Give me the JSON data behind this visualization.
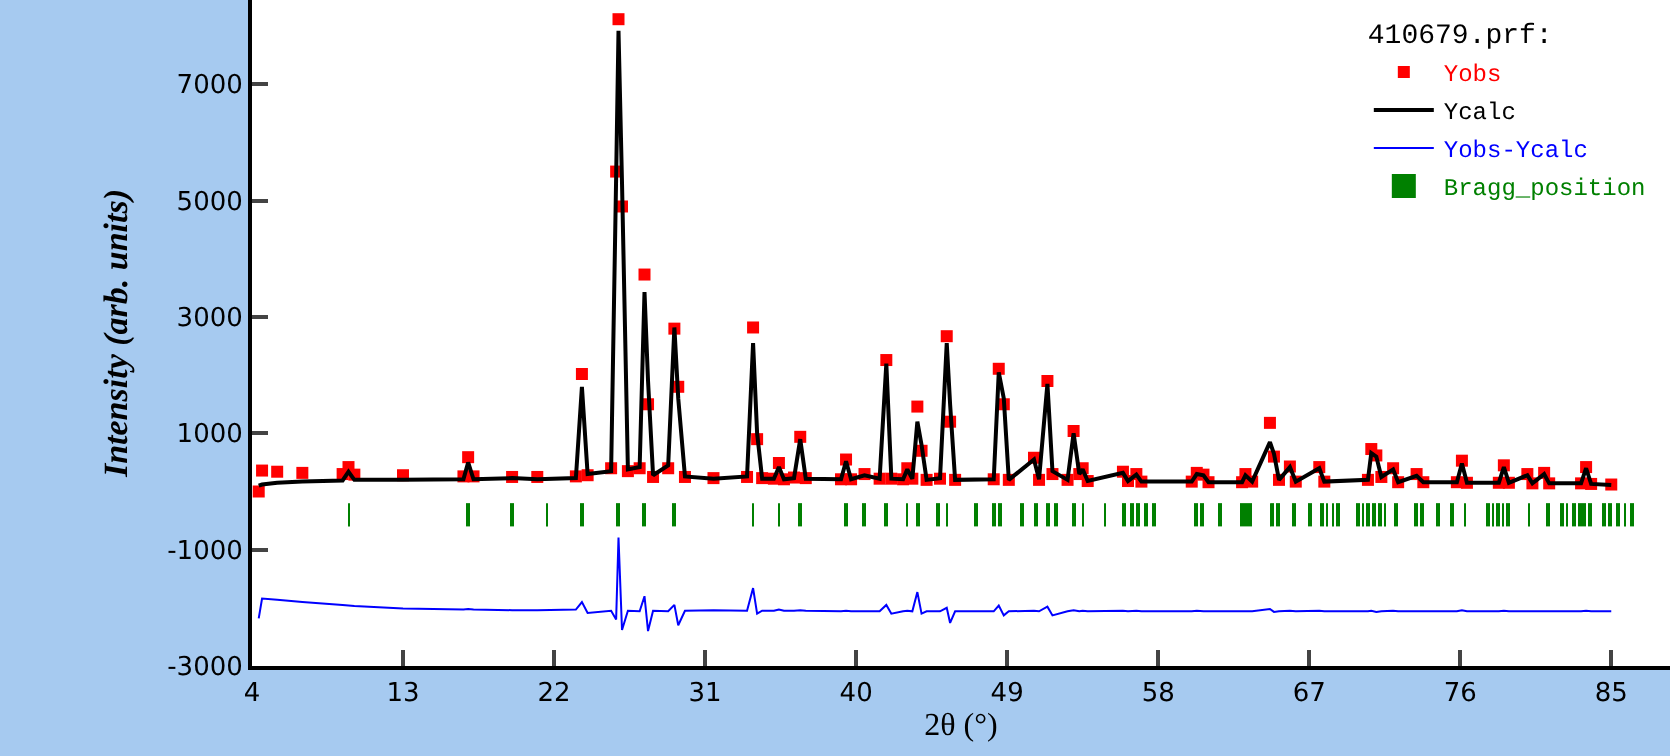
{
  "chart_data": {
    "type": "line",
    "xlabel": "2θ (°)",
    "ylabel": "Intensity (arb. units)",
    "legend_title": "410679.prf:",
    "legend": "top right",
    "xlim": [
      4,
      88.5
    ],
    "xticks": [
      4,
      13,
      22,
      31,
      40,
      49,
      58,
      67,
      76,
      85
    ],
    "ylim": [
      -3000,
      8450
    ],
    "yticks": [
      -3000,
      -1000,
      1000,
      3000,
      5000,
      7000
    ],
    "x": [
      4.4,
      4.6,
      5.5,
      7,
      9.4,
      9.75,
      10.1,
      13,
      16.6,
      16.88,
      17.2,
      19.5,
      21,
      23.3,
      23.66,
      24.0,
      25.4,
      25.7,
      25.84,
      26.05,
      26.4,
      27.1,
      27.39,
      27.6,
      27.9,
      28.8,
      29.17,
      29.4,
      29.8,
      31.5,
      33.5,
      33.86,
      34.1,
      34.4,
      35.1,
      35.4,
      35.7,
      36.3,
      36.67,
      37.0,
      39.1,
      39.4,
      39.7,
      40.5,
      41.4,
      41.8,
      42.1,
      42.8,
      43.05,
      43.35,
      43.65,
      43.9,
      44.2,
      45.0,
      45.4,
      45.6,
      45.9,
      48.2,
      48.5,
      48.8,
      49.1,
      50.6,
      50.9,
      51.4,
      51.7,
      52.6,
      52.96,
      53.3,
      53.5,
      53.8,
      55.9,
      56.2,
      56.7,
      57.0,
      60.0,
      60.3,
      60.7,
      61.0,
      63.0,
      63.2,
      63.6,
      64.66,
      64.9,
      65.2,
      65.85,
      66.2,
      67.6,
      67.9,
      70.5,
      70.7,
      71.0,
      71.3,
      72.0,
      72.3,
      73.4,
      73.8,
      75.8,
      76.1,
      76.4,
      78.3,
      78.6,
      78.9,
      80.0,
      80.3,
      81.0,
      81.3,
      83.2,
      83.5,
      83.8,
      85.0
    ],
    "series": [
      {
        "name": "Yobs",
        "type": "scatter",
        "marker": "square",
        "color": "#ff0000",
        "values": [
          0,
          360,
          340,
          320,
          300,
          420,
          290,
          280,
          260,
          590,
          260,
          250,
          250,
          260,
          2020,
          280,
          400,
          5500,
          8120,
          4900,
          350,
          400,
          3730,
          1500,
          250,
          400,
          2800,
          1800,
          250,
          230,
          250,
          2820,
          900,
          230,
          220,
          490,
          210,
          240,
          940,
          230,
          210,
          550,
          210,
          300,
          220,
          2260,
          220,
          210,
          400,
          220,
          1460,
          700,
          200,
          220,
          2670,
          1200,
          200,
          210,
          2110,
          1500,
          200,
          580,
          200,
          1900,
          300,
          200,
          1040,
          300,
          400,
          180,
          340,
          180,
          300,
          170,
          170,
          320,
          290,
          160,
          160,
          300,
          170,
          1180,
          600,
          200,
          430,
          170,
          420,
          170,
          200,
          730,
          620,
          250,
          400,
          160,
          300,
          160,
          160,
          530,
          150,
          150,
          450,
          150,
          300,
          140,
          320,
          140,
          140,
          420,
          130,
          120
        ]
      },
      {
        "name": "Ycalc",
        "color": "#000000",
        "values": [
          100,
          120,
          150,
          170,
          190,
          340,
          200,
          200,
          210,
          500,
          210,
          230,
          210,
          230,
          1800,
          300,
          350,
          5400,
          7920,
          5300,
          380,
          420,
          3430,
          1900,
          280,
          450,
          2820,
          1600,
          260,
          220,
          260,
          2550,
          1000,
          220,
          220,
          420,
          210,
          230,
          900,
          220,
          210,
          520,
          210,
          280,
          220,
          2200,
          220,
          210,
          380,
          220,
          1200,
          800,
          200,
          230,
          2550,
          1500,
          200,
          210,
          2050,
          1600,
          200,
          550,
          210,
          1850,
          350,
          200,
          1000,
          300,
          380,
          180,
          320,
          180,
          290,
          170,
          170,
          300,
          280,
          160,
          160,
          280,
          170,
          850,
          650,
          200,
          420,
          170,
          400,
          170,
          200,
          660,
          600,
          250,
          380,
          160,
          270,
          160,
          160,
          480,
          150,
          150,
          420,
          150,
          280,
          140,
          300,
          140,
          140,
          400,
          130,
          110
        ]
      },
      {
        "name": "Yobs-Ycalc",
        "color": "#0000ff",
        "values": [
          -2180,
          -1840,
          -1860,
          -1900,
          -1950,
          -1960,
          -1970,
          -2010,
          -2030,
          -2020,
          -2030,
          -2040,
          -2040,
          -2030,
          -1900,
          -2090,
          -2050,
          -2200,
          -790,
          -2380,
          -2050,
          -2060,
          -1800,
          -2400,
          -2050,
          -2060,
          -1950,
          -2300,
          -2050,
          -2040,
          -2050,
          -1660,
          -2100,
          -2050,
          -2050,
          -2030,
          -2050,
          -2050,
          -2040,
          -2050,
          -2060,
          -2050,
          -2060,
          -2060,
          -2060,
          -1950,
          -2100,
          -2060,
          -2050,
          -2060,
          -1730,
          -2100,
          -2060,
          -2060,
          -2000,
          -2260,
          -2060,
          -2060,
          -1960,
          -2130,
          -2060,
          -2050,
          -2060,
          -1980,
          -2130,
          -2060,
          -2040,
          -2060,
          -2050,
          -2060,
          -2050,
          -2060,
          -2050,
          -2060,
          -2060,
          -2050,
          -2060,
          -2060,
          -2060,
          -2060,
          -2060,
          -2020,
          -2070,
          -2060,
          -2050,
          -2060,
          -2050,
          -2060,
          -2060,
          -2050,
          -2070,
          -2060,
          -2050,
          -2060,
          -2060,
          -2060,
          -2060,
          -2040,
          -2060,
          -2060,
          -2050,
          -2060,
          -2060,
          -2060,
          -2060,
          -2060,
          -2060,
          -2050,
          -2060,
          -2060
        ]
      },
      {
        "name": "Bragg_position",
        "type": "bar",
        "color": "#008000",
        "x": [
          9.78,
          16.88,
          19.5,
          21.56,
          23.66,
          25.84,
          27.39,
          29.17,
          33.86,
          35.4,
          36.67,
          39.4,
          40.5,
          41.8,
          43.05,
          43.65,
          44.87,
          45.4,
          47.17,
          48.2,
          48.55,
          49.9,
          50.75,
          51.42,
          51.93,
          52.96,
          53.5,
          54.84,
          55.99,
          56.43,
          56.78,
          57.25,
          57.77,
          60.25,
          60.6,
          61.67,
          62.96,
          63.2,
          63.5,
          64.8,
          65.13,
          66.08,
          67.05,
          67.76,
          68.08,
          68.4,
          68.7,
          69.93,
          70.2,
          70.5,
          70.9,
          71.2,
          71.5,
          72.2,
          73.4,
          73.7,
          74.7,
          75.5,
          76.3,
          77.64,
          77.94,
          78.24,
          78.54,
          78.84,
          80.09,
          81.2,
          82.1,
          82.38,
          82.8,
          83.1,
          83.4,
          83.7,
          84.53,
          84.9,
          85.4,
          85.8,
          86.2
        ],
        "base": [
          -600,
          -600,
          -600,
          -600,
          -600,
          -600,
          -600,
          -600,
          -600,
          -600,
          -600,
          -600,
          -600,
          -600,
          -600,
          -600,
          -600,
          -600,
          -600,
          -600,
          -600,
          -600,
          -600,
          -600,
          -600,
          -600,
          -600,
          -600,
          -600,
          -600,
          -600,
          -600,
          -600,
          -600,
          -600,
          -600,
          -600,
          -600,
          -600,
          -600,
          -600,
          -600,
          -600,
          -600,
          -600,
          -600,
          -600,
          -600,
          -600,
          -600,
          -600,
          -600,
          -600,
          -600,
          -600,
          -600,
          -600,
          -600,
          -600,
          -600,
          -600,
          -600,
          -600,
          -600,
          -600,
          -600,
          -600,
          -600,
          -600,
          -600,
          -600,
          -600,
          -600,
          -600,
          -600,
          -600,
          -600
        ],
        "values": [
          400,
          400,
          400,
          400,
          400,
          400,
          400,
          400,
          400,
          400,
          400,
          400,
          400,
          400,
          400,
          400,
          400,
          400,
          400,
          400,
          400,
          400,
          400,
          400,
          400,
          400,
          400,
          400,
          400,
          400,
          400,
          400,
          400,
          400,
          400,
          400,
          400,
          400,
          400,
          400,
          400,
          400,
          400,
          400,
          400,
          400,
          400,
          400,
          400,
          400,
          400,
          400,
          400,
          400,
          400,
          400,
          400,
          400,
          400,
          400,
          400,
          400,
          400,
          400,
          400,
          400,
          400,
          400,
          400,
          400,
          400,
          400,
          400,
          400,
          400,
          400,
          400
        ]
      }
    ]
  }
}
